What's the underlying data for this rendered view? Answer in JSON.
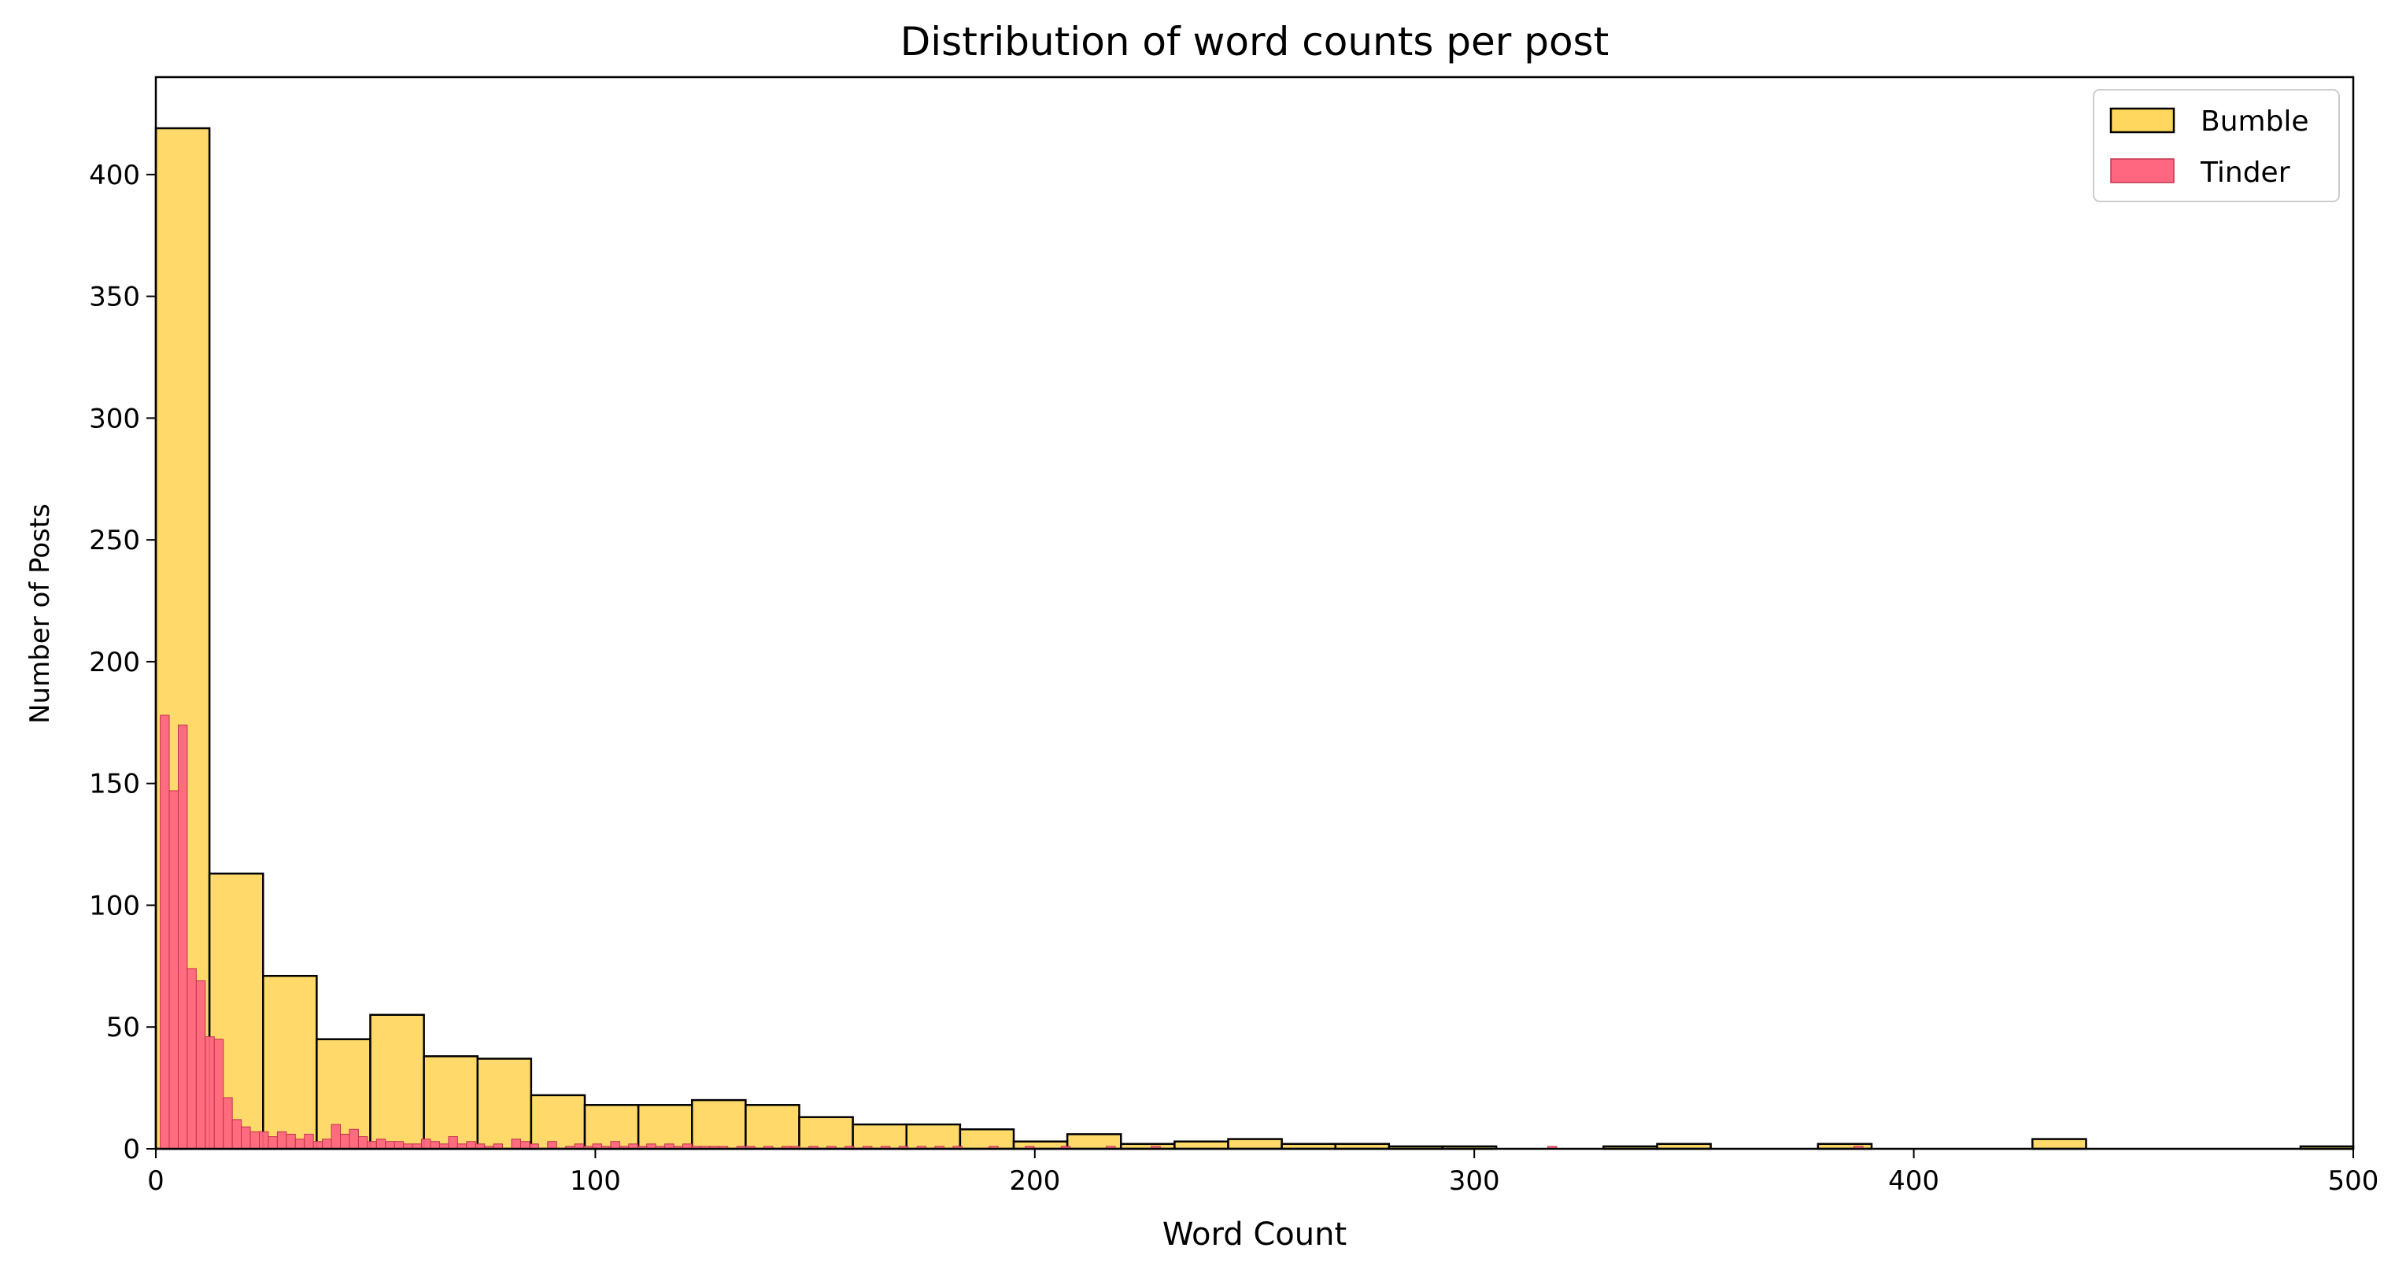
{
  "chart_data": {
    "type": "bar",
    "subtype": "histogram",
    "title": "Distribution of word counts per post",
    "xlabel": "Word Count",
    "ylabel": "Number of Posts",
    "xlim": [
      0,
      500
    ],
    "ylim": [
      0,
      440
    ],
    "grid": false,
    "legend_position": "top-right",
    "x_ticks": [
      0,
      100,
      200,
      300,
      400,
      500
    ],
    "y_ticks": [
      0,
      50,
      100,
      150,
      200,
      250,
      300,
      350,
      400
    ],
    "series": [
      {
        "name": "Bumble",
        "color": "#FFD75E",
        "edge_color": "#000000",
        "bin_width": 12.2,
        "bin_start": 0,
        "values": [
          419,
          113,
          71,
          45,
          55,
          38,
          37,
          22,
          18,
          18,
          20,
          18,
          13,
          10,
          10,
          8,
          3,
          6,
          2,
          3,
          4,
          2,
          2,
          1,
          1,
          0,
          0,
          1,
          2,
          0,
          0,
          2,
          0,
          0,
          0,
          4,
          0,
          0,
          0,
          0,
          1
        ]
      },
      {
        "name": "Tinder",
        "color": "#FF6680",
        "edge_color": "#C0334F",
        "bin_width": 2.05,
        "bin_start": 1,
        "values": [
          178,
          147,
          174,
          74,
          69,
          46,
          45,
          21,
          12,
          9,
          7,
          7,
          5,
          7,
          6,
          4,
          6,
          3,
          4,
          10,
          6,
          8,
          5,
          3,
          4,
          3,
          3,
          2,
          2,
          4,
          3,
          2,
          5,
          2,
          3,
          2,
          1,
          2,
          0,
          4,
          3,
          2,
          0,
          3,
          0,
          1,
          2,
          1,
          2,
          1,
          3,
          1,
          2,
          1,
          2,
          1,
          2,
          1,
          2,
          1,
          1,
          1,
          1,
          0,
          1,
          1,
          0,
          1,
          0,
          1,
          1,
          0,
          1,
          0,
          1,
          0,
          1,
          0,
          1,
          0,
          1,
          0,
          1,
          0,
          1,
          0,
          1,
          0,
          1,
          0,
          0,
          0,
          1,
          0,
          0,
          0,
          1,
          0,
          0,
          0,
          1,
          0,
          0,
          0,
          0,
          1,
          0,
          0,
          0,
          0,
          1,
          0,
          0,
          0,
          0,
          0,
          0,
          0,
          0,
          0,
          0,
          0,
          0,
          0,
          0,
          0,
          0,
          0,
          0,
          0,
          0,
          0,
          0,
          0,
          0,
          0,
          0,
          0,
          0,
          0,
          0,
          0,
          0,
          0,
          0,
          0,
          0,
          0,
          0,
          0,
          0,
          0,
          0,
          0,
          1,
          0,
          0,
          0,
          0,
          0,
          0,
          0,
          0,
          0,
          0,
          0,
          0,
          0,
          0,
          0,
          0,
          0,
          0,
          0,
          0,
          0,
          0,
          0,
          0,
          0,
          0,
          0,
          0,
          0,
          0,
          0,
          0,
          0,
          1
        ]
      }
    ]
  }
}
